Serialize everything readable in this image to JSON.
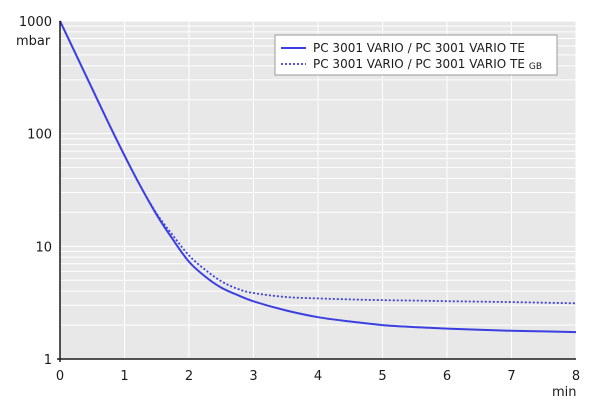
{
  "chart_data": {
    "type": "line",
    "title": "",
    "xlabel": "",
    "ylabel": "",
    "x_unit": "min",
    "y_unit": "mbar",
    "xlim": [
      0,
      8
    ],
    "ylim": [
      1,
      1000
    ],
    "y_scale": "log",
    "x_ticks": [
      "0",
      "1",
      "2",
      "3",
      "4",
      "5",
      "6",
      "7",
      "8"
    ],
    "y_ticks": [
      "1",
      "10",
      "100",
      "1000"
    ],
    "grid": true,
    "legend_position": "top-right",
    "colors": {
      "series": "#3b3fe0",
      "plot_bg": "#e8e8e8",
      "grid": "#ffffff",
      "legend_bg": "#ffffff"
    },
    "series": [
      {
        "name": "PC 3001 VARIO / PC 3001 VARIO TE",
        "name_sub": "",
        "line_style": "solid",
        "x": [
          0,
          0.25,
          0.5,
          0.75,
          1.0,
          1.25,
          1.5,
          1.75,
          2.0,
          2.25,
          2.5,
          2.75,
          3.0,
          3.5,
          4.0,
          4.5,
          5.0,
          5.5,
          6.0,
          6.5,
          7.0,
          7.5,
          8.0
        ],
        "y": [
          1000,
          500,
          250,
          125,
          64,
          34,
          19,
          11.5,
          7.3,
          5.4,
          4.3,
          3.7,
          3.25,
          2.7,
          2.35,
          2.15,
          2.0,
          1.92,
          1.86,
          1.82,
          1.78,
          1.76,
          1.73
        ]
      },
      {
        "name": "PC 3001 VARIO / PC 3001 VARIO TE",
        "name_sub": "GB",
        "line_style": "dotted",
        "x": [
          0,
          0.25,
          0.5,
          0.75,
          1.0,
          1.25,
          1.5,
          1.75,
          2.0,
          2.25,
          2.5,
          2.75,
          3.0,
          3.5,
          4.0,
          4.5,
          5.0,
          5.5,
          6.0,
          6.5,
          7.0,
          7.5,
          8.0
        ],
        "y": [
          1000,
          500,
          250,
          125,
          64,
          34,
          19.5,
          12.5,
          8.3,
          6.2,
          4.9,
          4.2,
          3.85,
          3.55,
          3.45,
          3.38,
          3.33,
          3.3,
          3.26,
          3.23,
          3.2,
          3.16,
          3.12
        ]
      }
    ]
  }
}
